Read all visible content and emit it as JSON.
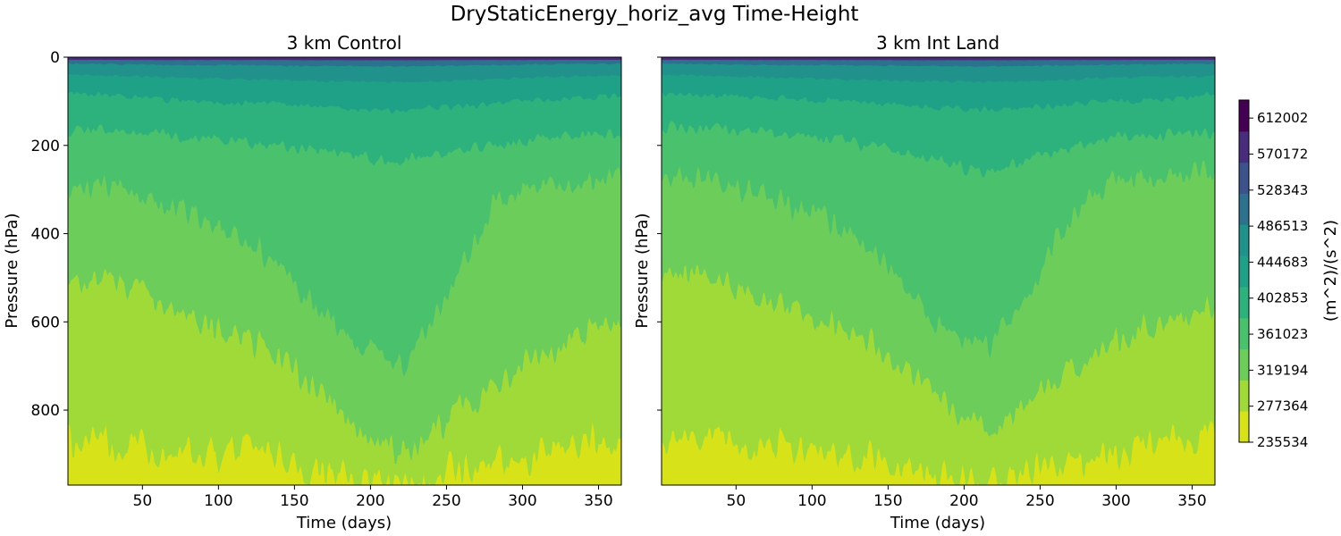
{
  "figure": {
    "suptitle": "DryStaticEnergy_horiz_avg Time-Height"
  },
  "chart_data": [
    {
      "type": "heatmap",
      "title": "3 km Control",
      "xlabel": "Time (days)",
      "ylabel": "Pressure (hPa)",
      "xlim": [
        1,
        365
      ],
      "ylim": [
        970,
        0
      ],
      "x_ticks": [
        50,
        100,
        150,
        200,
        250,
        300,
        350
      ],
      "y_ticks": [
        0,
        200,
        400,
        600,
        800
      ],
      "boundaries_hPa_by_day": {
        "days": [
          1,
          30,
          60,
          90,
          120,
          140,
          160,
          180,
          200,
          220,
          240,
          260,
          280,
          300,
          330,
          365
        ],
        "b_277": [
          880,
          870,
          890,
          900,
          880,
          900,
          930,
          950,
          960,
          955,
          950,
          940,
          930,
          910,
          880,
          870
        ],
        "b_319": [
          520,
          500,
          560,
          610,
          640,
          680,
          740,
          800,
          860,
          900,
          860,
          790,
          760,
          700,
          640,
          600
        ],
        "b_361": [
          310,
          290,
          330,
          370,
          420,
          470,
          560,
          610,
          660,
          700,
          620,
          470,
          340,
          300,
          290,
          270
        ],
        "b_403": [
          170,
          165,
          175,
          185,
          195,
          200,
          210,
          220,
          230,
          235,
          225,
          215,
          200,
          190,
          180,
          175
        ],
        "b_445": [
          80,
          85,
          95,
          100,
          105,
          105,
          110,
          115,
          120,
          120,
          115,
          110,
          105,
          100,
          95,
          85
        ],
        "b_487": [
          40,
          42,
          45,
          48,
          50,
          52,
          54,
          55,
          56,
          56,
          55,
          52,
          50,
          47,
          44,
          42
        ],
        "b_528": [
          15,
          16,
          17,
          18,
          18,
          19,
          20,
          20,
          21,
          21,
          20,
          19,
          18,
          17,
          16,
          15
        ],
        "b_570": [
          6,
          6,
          7,
          7,
          7,
          7,
          8,
          8,
          8,
          8,
          8,
          7,
          7,
          7,
          6,
          6
        ]
      }
    },
    {
      "type": "heatmap",
      "title": "3 km Int Land",
      "xlabel": "Time (days)",
      "ylabel": "Pressure (hPa)",
      "xlim": [
        1,
        365
      ],
      "ylim": [
        970,
        0
      ],
      "x_ticks": [
        50,
        100,
        150,
        200,
        250,
        300,
        350
      ],
      "y_ticks": [
        0,
        200,
        400,
        600,
        800
      ],
      "boundaries_hPa_by_day": {
        "days": [
          1,
          30,
          60,
          90,
          120,
          140,
          160,
          180,
          200,
          220,
          240,
          260,
          280,
          300,
          330,
          365
        ],
        "b_277": [
          880,
          860,
          880,
          890,
          900,
          910,
          930,
          950,
          960,
          955,
          945,
          935,
          925,
          905,
          870,
          860
        ],
        "b_319": [
          500,
          490,
          540,
          590,
          620,
          650,
          700,
          760,
          820,
          850,
          790,
          720,
          690,
          650,
          600,
          570
        ],
        "b_361": [
          280,
          270,
          300,
          340,
          380,
          440,
          520,
          600,
          640,
          650,
          560,
          430,
          320,
          280,
          270,
          260
        ],
        "b_403": [
          160,
          160,
          170,
          180,
          190,
          200,
          215,
          230,
          250,
          260,
          235,
          215,
          195,
          180,
          175,
          170
        ],
        "b_445": [
          80,
          85,
          90,
          95,
          100,
          105,
          110,
          115,
          120,
          120,
          115,
          110,
          105,
          100,
          95,
          85
        ],
        "b_487": [
          40,
          42,
          45,
          48,
          50,
          52,
          54,
          55,
          56,
          56,
          55,
          52,
          50,
          47,
          44,
          42
        ],
        "b_528": [
          15,
          16,
          17,
          18,
          18,
          19,
          20,
          20,
          21,
          21,
          20,
          19,
          18,
          17,
          16,
          15
        ],
        "b_570": [
          6,
          6,
          7,
          7,
          7,
          7,
          8,
          8,
          8,
          8,
          8,
          7,
          7,
          7,
          6,
          6
        ]
      }
    }
  ],
  "colorbar": {
    "label": "(m^2)/(s^2)",
    "min": 235534,
    "max": 632917,
    "tick_labels": [
      "235534",
      "277364",
      "319194",
      "361023",
      "402853",
      "444683",
      "486513",
      "528343",
      "570172",
      "612002"
    ],
    "level_colors": [
      "#d8e219",
      "#a0da39",
      "#6ccd5a",
      "#4ac16d",
      "#2db27d",
      "#1fa187",
      "#21918c",
      "#2c728e",
      "#3b528b",
      "#472d7b",
      "#440154"
    ]
  }
}
